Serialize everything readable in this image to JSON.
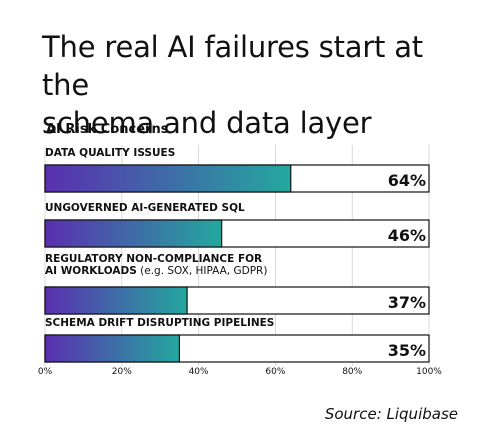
{
  "headline": {
    "line1": "The real AI failures start at the",
    "line2": "schema and data layer"
  },
  "source": "Source: Liquibase",
  "colors": {
    "gradient_start": "#5a2fb0",
    "gradient_end": "#23a89e",
    "border": "#111111"
  },
  "chart_data": {
    "type": "bar",
    "orientation": "horizontal",
    "title": "AI Risk Concerns",
    "categories": [
      {
        "label": [
          "DATA QUALITY ISSUES"
        ],
        "note": ""
      },
      {
        "label": [
          "UNGOVERNED AI-GENERATED SQL"
        ],
        "note": ""
      },
      {
        "label": [
          "REGULATORY NON-COMPLIANCE FOR",
          "AI WORKLOADS"
        ],
        "note": " (e.g. SOX, HIPAA, GDPR)"
      },
      {
        "label": [
          "SCHEMA DRIFT DISRUPTING PIPELINES"
        ],
        "note": ""
      }
    ],
    "values": [
      64,
      46,
      37,
      35
    ],
    "value_labels": [
      "64%",
      "46%",
      "37%",
      "35%"
    ],
    "xlim": [
      0,
      100
    ],
    "xticks": [
      "0%",
      "20%",
      "40%",
      "60%",
      "80%",
      "100%"
    ],
    "grid": true
  }
}
